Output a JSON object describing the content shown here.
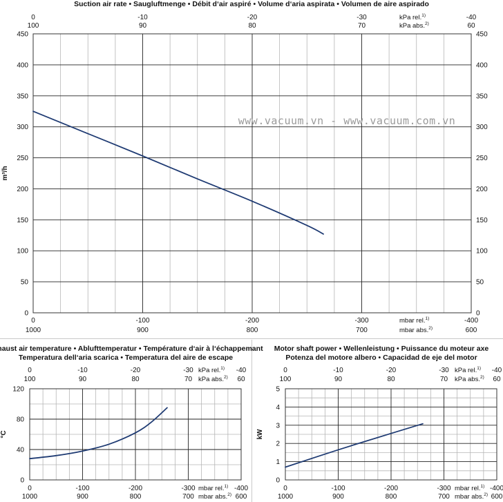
{
  "watermark": "www.vacuum.vn - www.vacuum.com.vn",
  "colors": {
    "line": "#1f3b73",
    "grid_major": "#222222",
    "grid_minor": "#b5b5b5",
    "frame": "#333333"
  },
  "chart_data": [
    {
      "id": "suction",
      "type": "line",
      "title_lines": [
        "Suction air rate  •  Saugluftmenge  •  Débit d‘air aspiré  •  Volume d‘aria aspirata  •  Volumen de aire aspirado"
      ],
      "ylabel": "m³/h",
      "ylim": [
        0,
        450
      ],
      "yticks": [
        0,
        50,
        100,
        150,
        200,
        250,
        300,
        350,
        400,
        450
      ],
      "ytick_labels": [
        "0",
        "50",
        "100",
        "150",
        "200",
        "250",
        "300",
        "350",
        "400",
        "450"
      ],
      "xlim": [
        0,
        -400
      ],
      "top_axis": {
        "rel_ticks": [
          0,
          -100,
          -200,
          -300,
          -400
        ],
        "rel_labels": [
          "0",
          "-10",
          "-20",
          "-30",
          "-40"
        ],
        "abs_labels": [
          "100",
          "90",
          "80",
          "70",
          "60"
        ],
        "rel_unit": "kPa rel.",
        "abs_unit": "kPa abs.",
        "rel_note": "1)",
        "abs_note": "2)"
      },
      "bottom_axis": {
        "rel_labels": [
          "0",
          "-100",
          "-200",
          "-300",
          "-400"
        ],
        "abs_labels": [
          "1000",
          "900",
          "800",
          "700",
          "600"
        ],
        "rel_unit": "mbar rel.",
        "abs_unit": "mbar abs.",
        "rel_note": "1)",
        "abs_note": "2)"
      },
      "series": [
        {
          "name": "Suction air rate",
          "x": [
            0,
            -50,
            -100,
            -150,
            -200,
            -250,
            -265
          ],
          "y": [
            325,
            289,
            253,
            216,
            180,
            141,
            127
          ]
        }
      ]
    },
    {
      "id": "exhaust",
      "type": "line",
      "title_lines": [
        "Exhaust air temperature  •  Ablufttemperatur  •  Température d‘air à l‘échappemant",
        "Temperatura dell‘aria scarica  •  Temperatura del aire de escape"
      ],
      "ylabel": "°C",
      "ylim": [
        0,
        120
      ],
      "yticks": [
        0,
        40,
        80,
        120
      ],
      "ytick_labels": [
        "0",
        "40",
        "80",
        "120"
      ],
      "xlim": [
        0,
        -400
      ],
      "top_axis": {
        "rel_ticks": [
          0,
          -100,
          -200,
          -300,
          -400
        ],
        "rel_labels": [
          "0",
          "-10",
          "-20",
          "-30",
          "-40"
        ],
        "abs_labels": [
          "100",
          "90",
          "80",
          "70",
          "60"
        ],
        "rel_unit": "kPa rel.",
        "abs_unit": "kPa abs.",
        "rel_note": "1)",
        "abs_note": "2)"
      },
      "bottom_axis": {
        "rel_labels": [
          "0",
          "-100",
          "-200",
          "-300",
          "-400"
        ],
        "abs_labels": [
          "1000",
          "900",
          "800",
          "700",
          "600"
        ],
        "rel_unit": "mbar rel.",
        "abs_unit": "mbar abs.",
        "rel_note": "1)",
        "abs_note": "2)"
      },
      "series": [
        {
          "name": "Exhaust air temperature",
          "x": [
            0,
            -50,
            -100,
            -150,
            -200,
            -230,
            -260
          ],
          "y": [
            28,
            32,
            38,
            47,
            62,
            76,
            95
          ]
        }
      ]
    },
    {
      "id": "power",
      "type": "line",
      "title_lines": [
        "Motor shaft power  •  Wellenleistung  •  Puissance du moteur axe",
        "Potenza del motore albero  •  Capacidad de eje del motor"
      ],
      "ylabel": "kW",
      "ylim": [
        0,
        5
      ],
      "yticks": [
        0,
        1,
        2,
        3,
        4,
        5
      ],
      "ytick_labels": [
        "0",
        "1",
        "2",
        "3",
        "4",
        "5"
      ],
      "xlim": [
        0,
        -400
      ],
      "top_axis": {
        "rel_ticks": [
          0,
          -100,
          -200,
          -300,
          -400
        ],
        "rel_labels": [
          "0",
          "-10",
          "-20",
          "-30",
          "-40"
        ],
        "abs_labels": [
          "100",
          "90",
          "80",
          "70",
          "60"
        ],
        "rel_unit": "kPa rel.",
        "abs_unit": "kPa abs.",
        "rel_note": "1)",
        "abs_note": "2)"
      },
      "bottom_axis": {
        "rel_labels": [
          "0",
          "-100",
          "-200",
          "-300",
          "-400"
        ],
        "abs_labels": [
          "1000",
          "900",
          "800",
          "700",
          "600"
        ],
        "rel_unit": "mbar rel.",
        "abs_unit": "mbar abs.",
        "rel_note": "1)",
        "abs_note": "2)"
      },
      "series": [
        {
          "name": "Motor shaft power",
          "x": [
            0,
            -100,
            -200,
            -260
          ],
          "y": [
            0.7,
            1.65,
            2.55,
            3.08
          ]
        }
      ]
    }
  ]
}
